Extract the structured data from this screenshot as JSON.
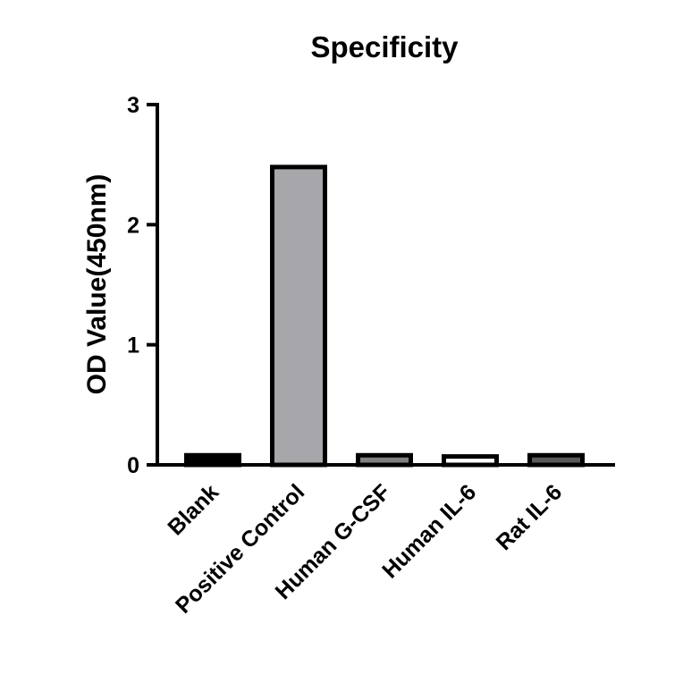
{
  "chart_data": {
    "type": "bar",
    "title": "Specificity",
    "xlabel": "",
    "ylabel": "OD Value(450nm)",
    "ylim": [
      0,
      3
    ],
    "yticks": [
      "0",
      "1",
      "2",
      "3"
    ],
    "categories": [
      "Blank",
      "Positive Control",
      "Human G-CSF",
      "Human IL-6",
      "Rat IL-6"
    ],
    "values": [
      0.08,
      2.48,
      0.08,
      0.07,
      0.08
    ],
    "bar_colors": [
      "#000000",
      "#a7a6ab",
      "#808080",
      "#ffffff",
      "#595959"
    ],
    "grid": false,
    "legend": "none"
  }
}
